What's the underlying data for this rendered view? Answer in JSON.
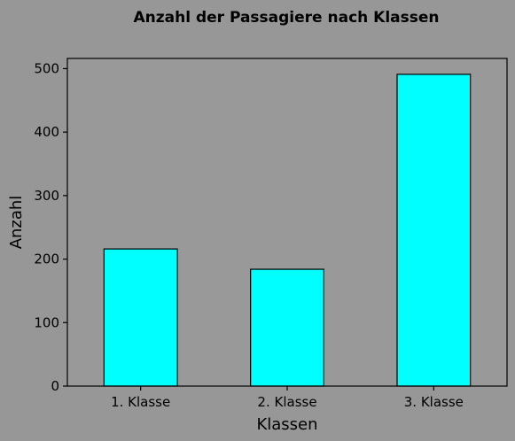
{
  "chart_data": {
    "type": "bar",
    "title": "Anzahl der Passagiere nach Klassen",
    "xlabel": "Klassen",
    "ylabel": "Anzahl",
    "categories": [
      "1. Klasse",
      "2. Klasse",
      "3. Klasse"
    ],
    "values": [
      216,
      184,
      491
    ],
    "ylim": [
      0,
      516
    ],
    "yticks": [
      0,
      100,
      200,
      300,
      400,
      500
    ],
    "grid": false,
    "bar_color": "#00ffff",
    "bar_edge_color": "#000000",
    "plot_background": "#999999",
    "figure_background": "#979797"
  }
}
